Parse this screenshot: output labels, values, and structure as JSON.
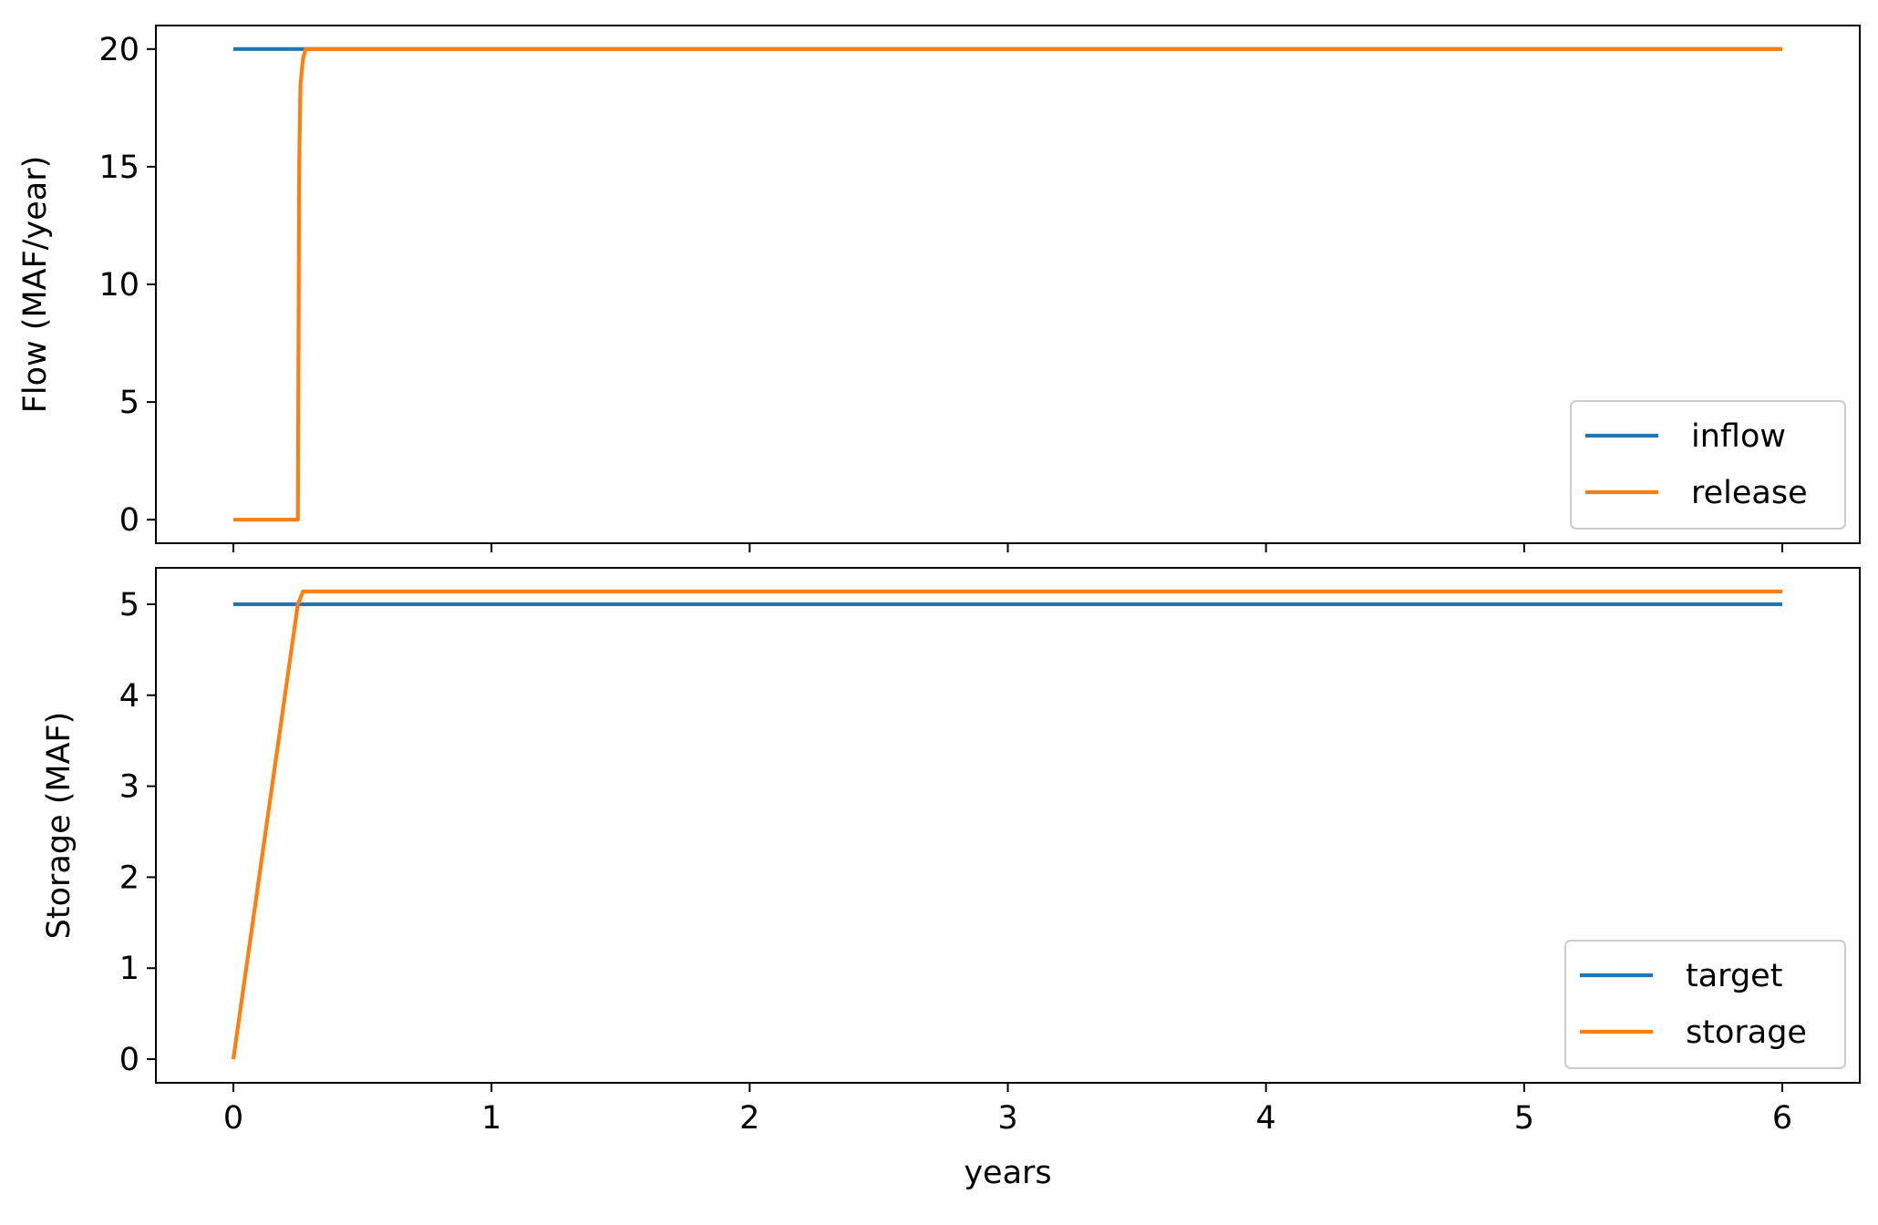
{
  "chart_data": [
    {
      "type": "line",
      "title": "",
      "xlabel": "",
      "ylabel": "Flow (MAF/year)",
      "xlim": [
        -0.3,
        6.3
      ],
      "ylim": [
        -1.0,
        21.0
      ],
      "xticks": [
        0,
        1,
        2,
        3,
        4,
        5,
        6
      ],
      "yticks": [
        0,
        5,
        10,
        15,
        20
      ],
      "show_x_tick_labels": false,
      "grid": false,
      "legend": "lower right",
      "series": [
        {
          "name": "inflow",
          "color": "#1f77b4",
          "x": [
            0,
            6
          ],
          "y": [
            20,
            20
          ]
        },
        {
          "name": "release",
          "color": "#ff7f0e",
          "x": [
            0,
            0.25,
            0.255,
            0.26,
            0.27,
            0.28,
            6
          ],
          "y": [
            0,
            0,
            15,
            18.5,
            19.6,
            20,
            20
          ]
        }
      ]
    },
    {
      "type": "line",
      "title": "",
      "xlabel": "years",
      "ylabel": "Storage (MAF)",
      "xlim": [
        -0.3,
        6.3
      ],
      "ylim": [
        -0.26,
        5.4
      ],
      "xticks": [
        0,
        1,
        2,
        3,
        4,
        5,
        6
      ],
      "yticks": [
        0,
        1,
        2,
        3,
        4,
        5
      ],
      "show_x_tick_labels": true,
      "grid": false,
      "legend": "lower right",
      "series": [
        {
          "name": "target",
          "color": "#1f77b4",
          "x": [
            0,
            6
          ],
          "y": [
            5,
            5
          ]
        },
        {
          "name": "storage",
          "color": "#ff7f0e",
          "x": [
            0,
            0.25,
            0.27,
            6
          ],
          "y": [
            0,
            5.0,
            5.14,
            5.14
          ]
        }
      ]
    }
  ]
}
